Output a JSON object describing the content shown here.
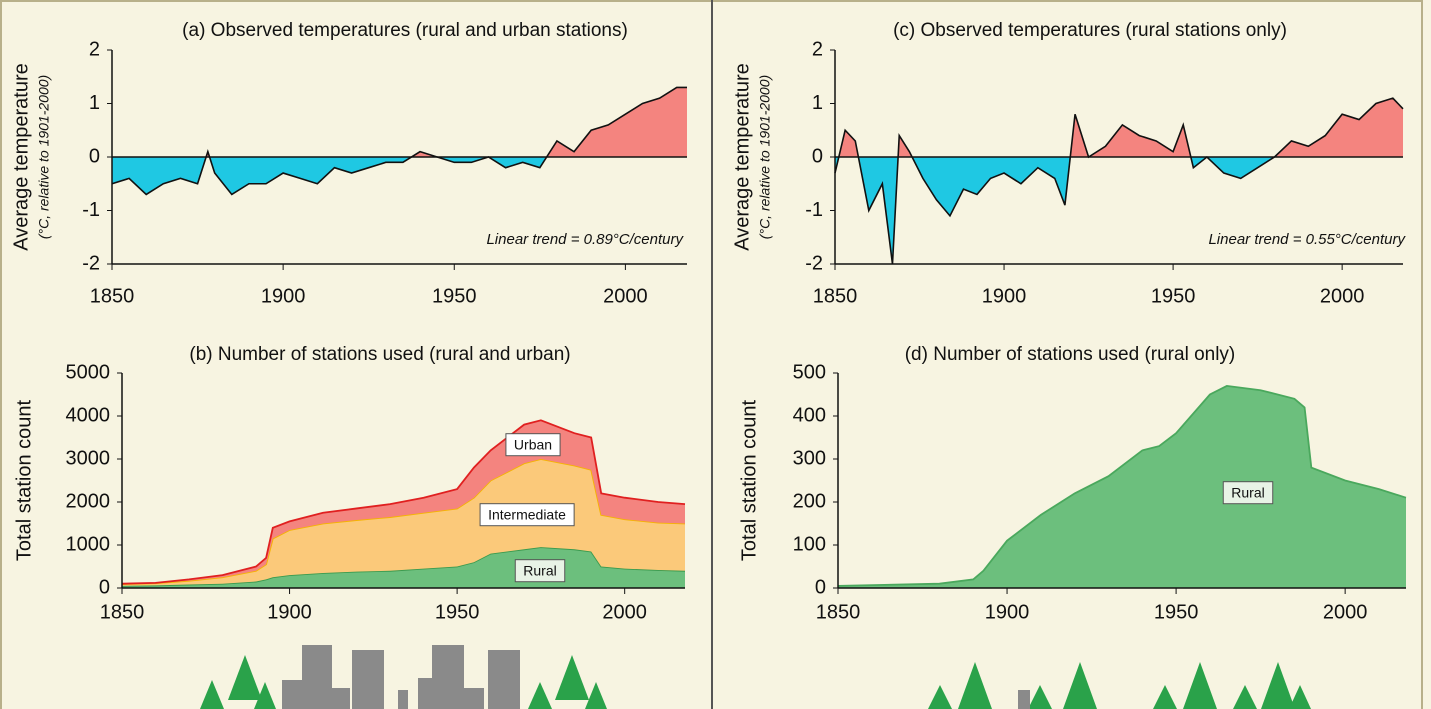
{
  "chart_data": [
    {
      "type": "area",
      "title": "(a) Observed temperatures (rural and urban stations)",
      "y_label": "Average temperature",
      "y_sublabel": "(°C, relative to 1901-2000)",
      "annotation": "Linear trend = 0.89°C/century",
      "x": [
        1850,
        1855,
        1860,
        1865,
        1870,
        1875,
        1878,
        1880,
        1885,
        1890,
        1895,
        1900,
        1905,
        1910,
        1915,
        1920,
        1925,
        1930,
        1935,
        1940,
        1945,
        1950,
        1955,
        1960,
        1965,
        1970,
        1975,
        1980,
        1985,
        1990,
        1995,
        2000,
        2005,
        2010,
        2015,
        2018
      ],
      "values": [
        -0.5,
        -0.4,
        -0.7,
        -0.5,
        -0.4,
        -0.5,
        0.1,
        -0.3,
        -0.7,
        -0.5,
        -0.5,
        -0.3,
        -0.4,
        -0.5,
        -0.2,
        -0.3,
        -0.2,
        -0.1,
        -0.1,
        0.1,
        0.0,
        -0.1,
        -0.1,
        0.0,
        -0.2,
        -0.1,
        -0.2,
        0.3,
        0.1,
        0.5,
        0.6,
        0.8,
        1.0,
        1.1,
        1.3,
        1.3
      ],
      "positive_color": "#f4847f",
      "negative_color": "#1fc8e3",
      "line_color": "#111111",
      "xlim": [
        1850,
        2018
      ],
      "xticks": [
        1850,
        1900,
        1950,
        2000
      ],
      "ylim": [
        -2,
        2
      ],
      "yticks": [
        2,
        1,
        0,
        -1,
        -2
      ]
    },
    {
      "type": "stacked_area",
      "title": "(b) Number of stations used (rural and urban)",
      "y_label": "Total station count",
      "x": [
        1850,
        1860,
        1870,
        1880,
        1890,
        1893,
        1895,
        1900,
        1910,
        1920,
        1930,
        1940,
        1950,
        1955,
        1960,
        1970,
        1975,
        1985,
        1990,
        1993,
        2000,
        2010,
        2018
      ],
      "series": [
        {
          "name": "Rural",
          "color": "#6cbf7d",
          "line_color": "#3a9a4e",
          "values": [
            50,
            60,
            80,
            100,
            150,
            200,
            250,
            300,
            350,
            380,
            400,
            450,
            500,
            600,
            800,
            900,
            950,
            900,
            850,
            500,
            450,
            420,
            400
          ]
        },
        {
          "name": "Intermediate",
          "color": "#fbc97a",
          "line_color": "#f5b400",
          "values": [
            40,
            50,
            90,
            150,
            250,
            350,
            900,
            1050,
            1150,
            1200,
            1250,
            1300,
            1350,
            1500,
            1700,
            2000,
            2050,
            1950,
            1900,
            1200,
            1150,
            1100,
            1100
          ]
        },
        {
          "name": "Urban",
          "color": "#f4847f",
          "line_color": "#e02020",
          "values": [
            10,
            10,
            30,
            50,
            100,
            150,
            250,
            200,
            250,
            270,
            300,
            350,
            450,
            700,
            700,
            900,
            900,
            750,
            750,
            500,
            500,
            480,
            450
          ]
        }
      ],
      "xlim": [
        1850,
        2018
      ],
      "xticks": [
        1850,
        1900,
        1950,
        2000
      ],
      "ylim": [
        0,
        5000
      ],
      "yticks": [
        0,
        1000,
        2000,
        3000,
        4000,
        5000
      ]
    },
    {
      "type": "area",
      "title": "(c) Observed temperatures (rural stations only)",
      "y_label": "Average temperature",
      "y_sublabel": "(°C, relative to 1901-2000)",
      "annotation": "Linear trend = 0.55°C/century",
      "x": [
        1850,
        1853,
        1856,
        1860,
        1864,
        1867,
        1869,
        1872,
        1876,
        1880,
        1884,
        1888,
        1892,
        1896,
        1900,
        1905,
        1910,
        1915,
        1918,
        1921,
        1925,
        1930,
        1935,
        1940,
        1945,
        1950,
        1953,
        1956,
        1960,
        1965,
        1970,
        1975,
        1980,
        1985,
        1990,
        1995,
        2000,
        2005,
        2010,
        2015,
        2018
      ],
      "values": [
        -0.3,
        0.5,
        0.3,
        -1.0,
        -0.5,
        -2.0,
        0.4,
        0.1,
        -0.4,
        -0.8,
        -1.1,
        -0.6,
        -0.7,
        -0.4,
        -0.3,
        -0.5,
        -0.2,
        -0.4,
        -0.9,
        0.8,
        0.0,
        0.2,
        0.6,
        0.4,
        0.3,
        0.1,
        0.6,
        -0.2,
        0.0,
        -0.3,
        -0.4,
        -0.2,
        0.0,
        0.3,
        0.2,
        0.4,
        0.8,
        0.7,
        1.0,
        1.1,
        0.9
      ],
      "positive_color": "#f4847f",
      "negative_color": "#1fc8e3",
      "line_color": "#111111",
      "xlim": [
        1850,
        2018
      ],
      "xticks": [
        1850,
        1900,
        1950,
        2000
      ],
      "ylim": [
        -2,
        2
      ],
      "yticks": [
        2,
        1,
        0,
        -1,
        -2
      ]
    },
    {
      "type": "stacked_area",
      "title": "(d) Number of stations used (rural only)",
      "y_label": "Total station count",
      "x": [
        1850,
        1880,
        1890,
        1893,
        1900,
        1910,
        1920,
        1930,
        1940,
        1945,
        1950,
        1960,
        1965,
        1975,
        1985,
        1988,
        1990,
        2000,
        2010,
        2018
      ],
      "series": [
        {
          "name": "Rural",
          "color": "#6cbf7d",
          "line_color": "#4aa85d",
          "values": [
            5,
            10,
            20,
            40,
            110,
            170,
            220,
            260,
            320,
            330,
            360,
            450,
            470,
            460,
            440,
            420,
            280,
            250,
            230,
            210
          ]
        }
      ],
      "xlim": [
        1850,
        2018
      ],
      "xticks": [
        1850,
        1900,
        1950,
        2000
      ],
      "ylim": [
        0,
        500
      ],
      "yticks": [
        0,
        100,
        200,
        300,
        400,
        500
      ]
    }
  ]
}
